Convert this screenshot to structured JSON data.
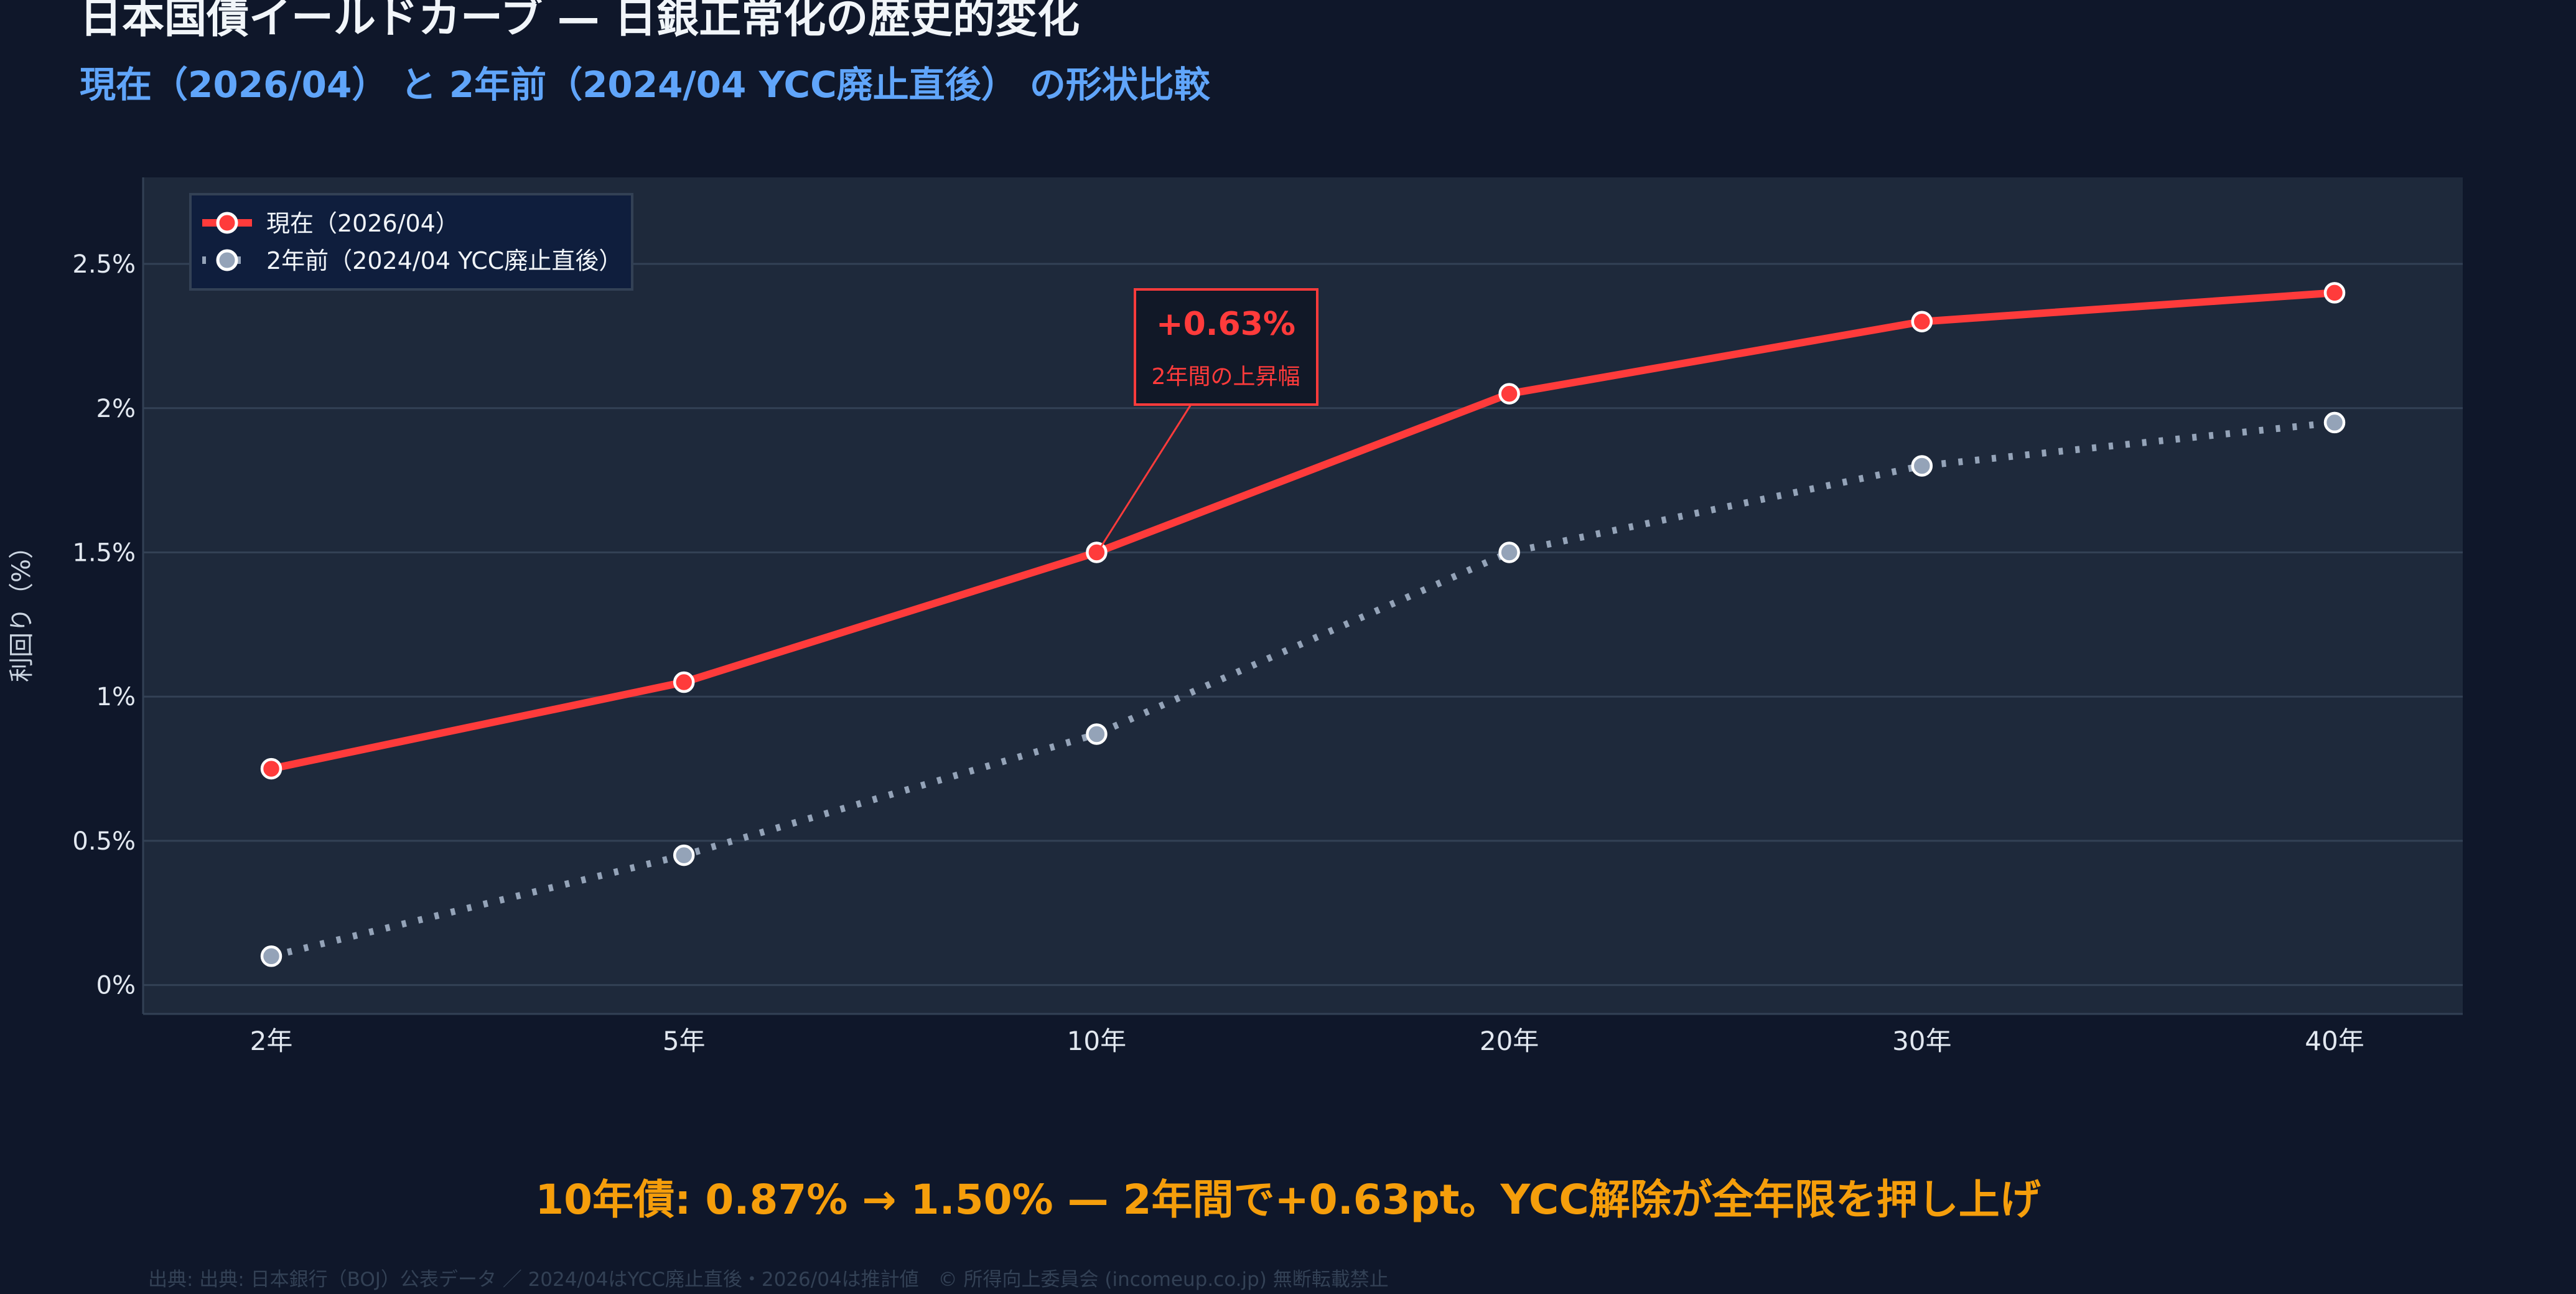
{
  "title": "日本国債イールドカーブ — 日銀正常化の歴史的変化",
  "subtitle": "現在（2026/04） と 2年前（2024/04 YCC廃止直後） の形状比較",
  "caption": "10年債: 0.87% → 1.50% — 2年間で+0.63pt。YCC解除が全年限を押し上げ",
  "source": "出典: 出典: 日本銀行（BOJ）公表データ ／ 2024/04はYCC廃止直後・2026/04は推計値　© 所得向上委員会 (incomeup.co.jp) 無断転載禁止",
  "colors": {
    "background": "#0f172a",
    "plot": "#1e293b",
    "grid": "#334155",
    "current": "#ff3b3b",
    "previous": "#94a3b8",
    "title": "#f1f5f9",
    "subtitle": "#60a5fa",
    "caption": "#f59e0b",
    "source": "#334155"
  },
  "chart_data": {
    "type": "line",
    "title": "日本国債イールドカーブ — 日銀正常化の歴史的変化",
    "xlabel": "",
    "ylabel": "利回り（%）",
    "categories": [
      "2年",
      "5年",
      "10年",
      "20年",
      "30年",
      "40年"
    ],
    "ylim": [
      -0.1,
      2.8
    ],
    "yticks": [
      0,
      0.5,
      1,
      1.5,
      2,
      2.5
    ],
    "ytick_labels": [
      "0%",
      "0.5%",
      "1%",
      "1.5%",
      "2%",
      "2.5%"
    ],
    "grid": true,
    "legend_position": "top-left",
    "series": [
      {
        "name": "現在（2026/04）",
        "style": "solid",
        "values": [
          0.75,
          1.05,
          1.5,
          2.05,
          2.3,
          2.4
        ]
      },
      {
        "name": "2年前（2024/04 YCC廃止直後）",
        "style": "dotted",
        "values": [
          0.1,
          0.45,
          0.87,
          1.5,
          1.8,
          1.95
        ]
      }
    ],
    "annotation": {
      "value": "+0.63%",
      "label": "2年間の上昇幅",
      "category": "10年",
      "y": 1.5
    }
  }
}
